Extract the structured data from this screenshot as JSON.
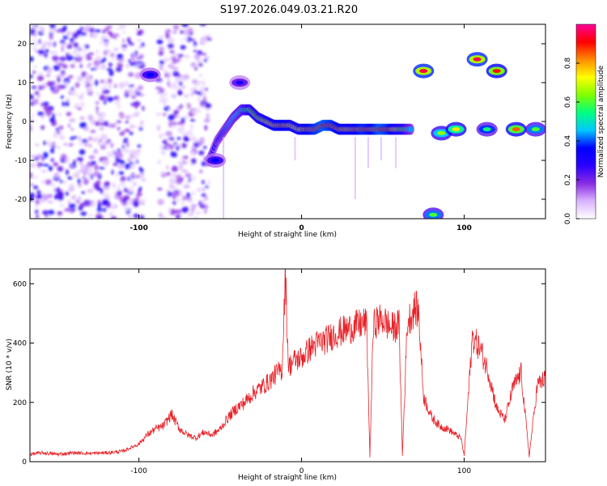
{
  "figure_title": "S197.2026.049.03.21.R20",
  "chart_data": [
    {
      "type": "heatmap",
      "title": "S197.2026.049.03.21.R20",
      "xlabel": "Height of straight line (km)",
      "ylabel": "Frequency (Hz)",
      "xlim": [
        -167,
        150
      ],
      "ylim": [
        -25,
        25
      ],
      "xticks": [
        -100,
        0,
        100
      ],
      "yticks": [
        -20,
        -10,
        0,
        10,
        20
      ],
      "colorbar": {
        "label": "Normalized spectral amplitude",
        "range": [
          0.0,
          1.0
        ],
        "ticks": [
          0.0,
          0.2,
          0.4,
          0.6,
          0.8
        ],
        "tick_labels": [
          "0.0",
          "0.2",
          "0.4",
          "0.6",
          "0.8"
        ],
        "colors": [
          "#ffffff",
          "#d9b3ff",
          "#8a2be2",
          "#2a00ff",
          "#0000ff",
          "#00c8ff",
          "#00ff7f",
          "#7fff00",
          "#ffff00",
          "#ff8c00",
          "#ff0000",
          "#ff0099"
        ]
      },
      "noise_regions": [
        {
          "x_range": [
            -167,
            -97
          ],
          "y_range": [
            -25,
            25
          ],
          "intensity": 0.15
        },
        {
          "x_range": [
            -88,
            -57
          ],
          "y_range": [
            -25,
            25
          ],
          "intensity": 0.12
        }
      ],
      "ridge": {
        "x": [
          -57,
          -52,
          -47,
          -42,
          -37,
          -32,
          -27,
          -22,
          -17,
          -12,
          -7,
          -2,
          3,
          8,
          13,
          18,
          23,
          28,
          33,
          38,
          43,
          48,
          53,
          58,
          63,
          68
        ],
        "y": [
          -10,
          -5,
          -2,
          1,
          3,
          3,
          1,
          0,
          -1,
          -1,
          -1,
          -2,
          -2,
          -2,
          -1,
          -1,
          -2,
          -2,
          -2,
          -2,
          -2,
          -2,
          -2,
          -2,
          -2,
          -2
        ],
        "amplitude": [
          0.3,
          0.35,
          0.4,
          0.45,
          0.5,
          0.6,
          0.65,
          0.7,
          0.75,
          0.8,
          0.75,
          0.7,
          0.8,
          0.85,
          0.9,
          0.85,
          0.8,
          0.75,
          0.8,
          0.85,
          0.8,
          0.9,
          0.85,
          0.7,
          0.6,
          0.4
        ]
      },
      "features": [
        {
          "x": 75,
          "y": 13,
          "amplitude": 0.95
        },
        {
          "x": 81,
          "y": -24,
          "amplitude": 0.6
        },
        {
          "x": 86,
          "y": -3,
          "amplitude": 0.65
        },
        {
          "x": 95,
          "y": -2,
          "amplitude": 0.75
        },
        {
          "x": 108,
          "y": 16,
          "amplitude": 0.95
        },
        {
          "x": 120,
          "y": 13,
          "amplitude": 0.9
        },
        {
          "x": 114,
          "y": -2,
          "amplitude": 0.55
        },
        {
          "x": 132,
          "y": -2,
          "amplitude": 0.85
        },
        {
          "x": 144,
          "y": -2,
          "amplitude": 0.6
        },
        {
          "x": -93,
          "y": 12,
          "amplitude": 0.35
        },
        {
          "x": -38,
          "y": 10,
          "amplitude": 0.3
        },
        {
          "x": -53,
          "y": -10,
          "amplitude": 0.35
        }
      ]
    },
    {
      "type": "line",
      "xlabel": "Height of straight line (km)",
      "ylabel": "SNR (10 * v/v)",
      "xlim": [
        -167,
        150
      ],
      "ylim": [
        0,
        650
      ],
      "xticks": [
        -100,
        0,
        100
      ],
      "yticks": [
        0,
        200,
        400,
        600
      ],
      "color": "#e8242a",
      "series": [
        {
          "name": "SNR",
          "x": [
            -167,
            -160,
            -150,
            -140,
            -130,
            -120,
            -110,
            -100,
            -95,
            -90,
            -85,
            -80,
            -75,
            -70,
            -65,
            -60,
            -55,
            -50,
            -45,
            -40,
            -35,
            -30,
            -25,
            -20,
            -15,
            -12,
            -10,
            -8,
            -5,
            0,
            5,
            10,
            15,
            20,
            25,
            30,
            35,
            40,
            42,
            44,
            45,
            50,
            55,
            60,
            62,
            65,
            70,
            72,
            75,
            80,
            85,
            90,
            95,
            98,
            100,
            105,
            110,
            115,
            120,
            125,
            130,
            135,
            140,
            145,
            150
          ],
          "y": [
            25,
            30,
            25,
            30,
            28,
            30,
            35,
            60,
            90,
            110,
            120,
            160,
            110,
            90,
            80,
            100,
            90,
            110,
            150,
            180,
            200,
            230,
            250,
            270,
            300,
            310,
            640,
            320,
            340,
            350,
            380,
            400,
            410,
            430,
            440,
            450,
            460,
            470,
            15,
            440,
            470,
            480,
            450,
            460,
            20,
            470,
            520,
            500,
            220,
            150,
            120,
            110,
            90,
            80,
            20,
            420,
            380,
            300,
            180,
            140,
            250,
            300,
            20,
            260,
            280
          ]
        }
      ]
    }
  ]
}
